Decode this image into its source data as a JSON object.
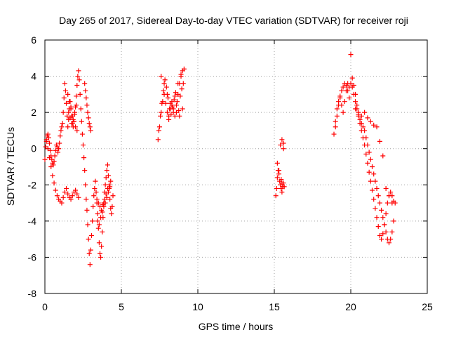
{
  "chart_data": {
    "type": "scatter",
    "title": "Day 265 of 2017, Sidereal Day-to-day VTEC variation (SDTVAR) for receiver roji",
    "xlabel": "GPS time / hours",
    "ylabel": "SDTVAR / TECUs",
    "xlim": [
      0,
      25
    ],
    "ylim": [
      -8,
      6
    ],
    "xticks": [
      0,
      5,
      10,
      15,
      20,
      25
    ],
    "yticks": [
      -8,
      -6,
      -4,
      -2,
      0,
      2,
      4,
      6
    ],
    "xtick_labels": [
      "0",
      "5",
      "10",
      "15",
      "20",
      "25"
    ],
    "ytick_labels": [
      "-8",
      "-6",
      "-4",
      "-2",
      "0",
      "2",
      "4",
      "6"
    ],
    "grid": true,
    "marker": "plus",
    "marker_color": "#ff0000",
    "series": [
      {
        "name": "SDTVAR",
        "x": [
          0.0,
          0.05,
          0.1,
          0.15,
          0.2,
          0.25,
          0.3,
          0.35,
          0.4,
          0.45,
          0.5,
          0.55,
          0.6,
          0.65,
          0.7,
          0.75,
          0.8,
          0.85,
          0.9,
          0.95,
          1.0,
          1.05,
          1.1,
          1.15,
          1.2,
          1.25,
          1.3,
          1.35,
          1.4,
          1.45,
          1.5,
          1.55,
          1.6,
          1.65,
          1.7,
          1.75,
          1.8,
          1.85,
          1.9,
          1.95,
          2.0,
          2.05,
          2.1,
          2.15,
          2.2,
          2.25,
          2.3,
          2.35,
          2.4,
          2.45,
          2.5,
          2.55,
          2.6,
          2.65,
          2.7,
          2.75,
          2.8,
          2.85,
          2.9,
          2.95,
          3.0,
          3.05,
          3.1,
          3.15,
          3.2,
          3.25,
          3.3,
          3.35,
          3.4,
          3.45,
          3.5,
          3.55,
          3.6,
          3.65,
          3.7,
          3.75,
          3.8,
          3.85,
          3.9,
          3.95,
          4.0,
          4.05,
          4.1,
          4.15,
          4.2,
          4.25,
          4.3,
          4.35,
          4.4,
          4.45,
          0.1,
          0.2,
          0.3,
          0.4,
          0.5,
          0.6,
          0.7,
          0.8,
          0.9,
          1.0,
          1.1,
          1.2,
          1.3,
          1.4,
          1.5,
          1.6,
          1.7,
          1.8,
          1.9,
          2.0,
          2.1,
          2.2,
          1.5,
          1.6,
          1.7,
          1.8,
          1.9,
          2.0,
          2.1,
          1.55,
          1.65,
          1.75,
          1.85,
          1.95,
          2.05,
          2.6,
          2.65,
          2.7,
          2.75,
          2.8,
          2.85,
          2.9,
          2.95,
          3.0,
          3.4,
          3.5,
          3.6,
          3.7,
          3.8,
          3.9,
          4.0,
          4.1,
          4.2,
          4.3,
          3.45,
          3.55,
          3.65,
          3.75,
          3.85,
          3.95,
          4.05,
          4.15,
          4.25,
          7.4,
          7.5,
          7.6,
          7.7,
          7.8,
          7.9,
          8.0,
          8.1,
          8.2,
          8.3,
          8.4,
          8.5,
          8.6,
          8.7,
          8.8,
          8.9,
          9.0,
          9.1,
          7.45,
          7.55,
          7.65,
          7.75,
          7.85,
          7.95,
          8.05,
          8.15,
          8.25,
          8.35,
          8.45,
          8.55,
          8.65,
          8.75,
          8.85,
          8.95,
          9.05,
          7.6,
          7.8,
          8.0,
          8.2,
          8.4,
          8.6,
          8.8,
          9.0,
          8.1,
          8.3,
          8.5,
          8.7,
          8.9,
          15.1,
          15.15,
          15.2,
          15.25,
          15.3,
          15.35,
          15.4,
          15.45,
          15.5,
          15.55,
          15.6,
          15.65,
          15.2,
          15.3,
          15.4,
          15.5,
          15.6,
          15.45,
          15.5,
          15.55,
          15.6,
          18.9,
          19.0,
          19.1,
          19.2,
          19.3,
          19.4,
          19.5,
          19.6,
          19.7,
          19.8,
          19.9,
          20.0,
          20.1,
          20.2,
          20.3,
          20.4,
          20.5,
          20.6,
          20.7,
          20.8,
          20.9,
          21.0,
          21.1,
          21.2,
          21.3,
          21.4,
          21.5,
          21.6,
          21.7,
          21.8,
          21.9,
          22.0,
          22.1,
          22.2,
          22.3,
          22.4,
          22.5,
          22.6,
          22.7,
          22.8,
          22.9,
          19.0,
          19.1,
          19.2,
          19.3,
          19.4,
          19.5,
          19.6,
          19.7,
          19.8,
          19.9,
          20.1,
          20.2,
          20.3,
          20.4,
          20.5,
          20.6,
          20.7,
          20.8,
          20.9,
          21.0,
          21.1,
          21.2,
          21.3,
          21.4,
          21.5,
          21.6,
          21.7,
          21.8,
          21.9,
          22.0,
          22.1,
          22.2,
          22.3,
          22.4,
          22.5,
          22.6,
          22.7,
          22.8,
          20.0,
          20.3,
          20.5,
          20.7,
          20.9,
          21.1,
          21.3,
          21.5,
          21.7,
          21.9,
          22.1,
          22.3,
          22.5,
          22.7
        ],
        "y": [
          -0.6,
          0.1,
          0.5,
          0.7,
          0.8,
          0.6,
          0.3,
          -0.1,
          -0.4,
          -0.6,
          -0.8,
          -0.9,
          -0.7,
          -0.4,
          -0.1,
          0.2,
          0.1,
          -0.2,
          0.0,
          0.3,
          0.7,
          1.0,
          1.2,
          1.4,
          2.0,
          2.8,
          3.6,
          3.2,
          2.5,
          1.8,
          1.2,
          1.6,
          2.2,
          2.6,
          2.3,
          1.8,
          1.4,
          1.2,
          1.5,
          1.9,
          2.3,
          2.9,
          3.5,
          4.0,
          4.3,
          3.8,
          3.0,
          2.2,
          1.5,
          0.8,
          0.2,
          -0.5,
          -1.2,
          -2.0,
          -2.8,
          -3.4,
          -4.2,
          -5.0,
          -5.8,
          -6.4,
          -5.6,
          -4.8,
          -4.0,
          -3.2,
          -2.6,
          -2.2,
          -1.8,
          -2.4,
          -3.0,
          -3.6,
          -4.4,
          -5.2,
          -5.8,
          -6.0,
          -5.4,
          -4.6,
          -3.8,
          -3.0,
          -2.4,
          -2.0,
          -1.6,
          -1.2,
          -0.9,
          -1.5,
          -2.2,
          -2.8,
          -3.3,
          -3.6,
          -3.2,
          -2.6,
          0.4,
          0.0,
          -0.5,
          -1.0,
          -1.5,
          -1.9,
          -2.3,
          -2.6,
          -2.8,
          -2.9,
          -3.0,
          -2.7,
          -2.4,
          -2.2,
          -2.5,
          -2.7,
          -2.8,
          -2.6,
          -2.4,
          -2.3,
          -2.5,
          -2.7,
          3.0,
          2.6,
          2.2,
          1.8,
          1.5,
          1.2,
          1.0,
          2.0,
          1.7,
          1.4,
          1.6,
          2.0,
          2.4,
          3.6,
          3.2,
          2.8,
          2.4,
          2.0,
          1.7,
          1.4,
          1.2,
          1.0,
          -2.8,
          -3.0,
          -3.2,
          -3.4,
          -3.1,
          -2.8,
          -2.5,
          -2.2,
          -2.0,
          -1.8,
          -4.0,
          -4.2,
          -3.8,
          -3.5,
          -3.2,
          -3.0,
          -2.7,
          -2.4,
          -2.1,
          0.5,
          1.2,
          2.0,
          2.6,
          3.0,
          2.5,
          2.0,
          1.6,
          2.2,
          2.6,
          2.0,
          1.8,
          2.4,
          3.0,
          3.6,
          4.0,
          4.3,
          4.4,
          1.0,
          1.8,
          2.5,
          3.2,
          3.8,
          3.4,
          2.8,
          2.2,
          1.9,
          2.3,
          2.7,
          3.1,
          2.6,
          2.1,
          2.9,
          3.3,
          3.6,
          4.0,
          3.6,
          3.0,
          2.5,
          2.2,
          2.0,
          1.8,
          2.2,
          1.8,
          2.4,
          2.9,
          3.6,
          4.1,
          -2.6,
          -2.2,
          -1.6,
          -1.2,
          -1.4,
          -1.8,
          -2.0,
          -2.2,
          -2.4,
          -2.1,
          -1.9,
          -2.1,
          -0.8,
          -1.2,
          0.2,
          0.5,
          0.3,
          -1.7,
          -1.9,
          -2.1,
          0.0,
          0.8,
          1.5,
          2.2,
          2.6,
          2.9,
          3.2,
          3.4,
          3.6,
          3.5,
          3.2,
          2.8,
          3.6,
          3.9,
          3.5,
          3.0,
          2.4,
          1.9,
          1.6,
          1.4,
          1.2,
          1.0,
          0.6,
          0.2,
          -0.2,
          -0.6,
          -1.0,
          -1.4,
          -1.8,
          -2.2,
          -2.6,
          -3.0,
          -3.4,
          -3.8,
          -4.2,
          -4.6,
          -5.0,
          -5.2,
          -5.0,
          -4.6,
          -4.0,
          -3.0,
          1.2,
          1.8,
          2.4,
          2.8,
          2.4,
          2.0,
          2.6,
          3.2,
          3.6,
          3.4,
          3.4,
          3.0,
          2.6,
          2.2,
          1.8,
          1.4,
          1.0,
          0.6,
          0.2,
          -0.3,
          -0.8,
          -1.3,
          -1.8,
          -2.3,
          -2.8,
          -3.3,
          -3.8,
          -4.3,
          -4.8,
          -5.0,
          -4.7,
          -4.2,
          -3.6,
          -3.0,
          -2.6,
          -2.4,
          -2.6,
          -2.9,
          5.2,
          2.2,
          2.0,
          1.8,
          2.0,
          1.7,
          1.5,
          1.3,
          1.2,
          0.4,
          -0.4,
          -2.2,
          -2.6,
          -3.0
        ]
      }
    ]
  }
}
